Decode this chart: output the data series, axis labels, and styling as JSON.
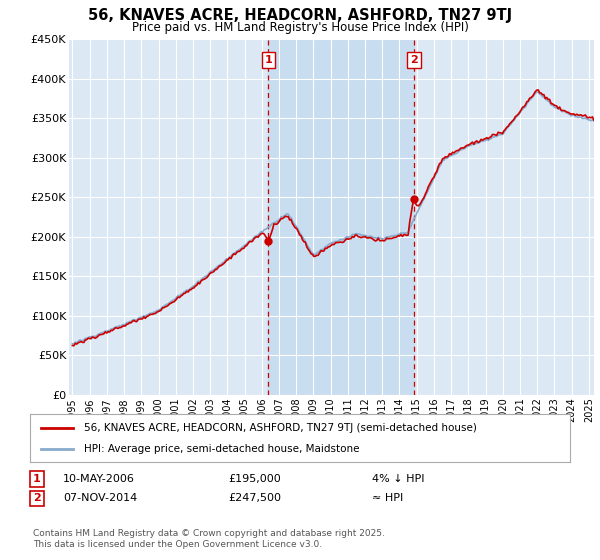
{
  "title": "56, KNAVES ACRE, HEADCORN, ASHFORD, TN27 9TJ",
  "subtitle": "Price paid vs. HM Land Registry's House Price Index (HPI)",
  "legend_line1": "56, KNAVES ACRE, HEADCORN, ASHFORD, TN27 9TJ (semi-detached house)",
  "legend_line2": "HPI: Average price, semi-detached house, Maidstone",
  "annotation1_date": "10-MAY-2006",
  "annotation1_price": "£195,000",
  "annotation1_note": "4% ↓ HPI",
  "annotation2_date": "07-NOV-2014",
  "annotation2_price": "£247,500",
  "annotation2_note": "≈ HPI",
  "footer": "Contains HM Land Registry data © Crown copyright and database right 2025.\nThis data is licensed under the Open Government Licence v3.0.",
  "sale1_x": 2006.37,
  "sale1_y": 195000,
  "sale2_x": 2014.85,
  "sale2_y": 247500,
  "vline1_x": 2006.37,
  "vline2_x": 2014.85,
  "ylim": [
    0,
    450000
  ],
  "xlim_start": 1994.8,
  "xlim_end": 2025.3,
  "background_color": "#dce9f5",
  "fig_bg_color": "#ffffff",
  "grid_color": "#ffffff",
  "red_line_color": "#cc0000",
  "blue_line_color": "#88aacc",
  "vline_color": "#cc0000",
  "sale_dot_color": "#cc0000",
  "span_color": "#c8ddf0"
}
